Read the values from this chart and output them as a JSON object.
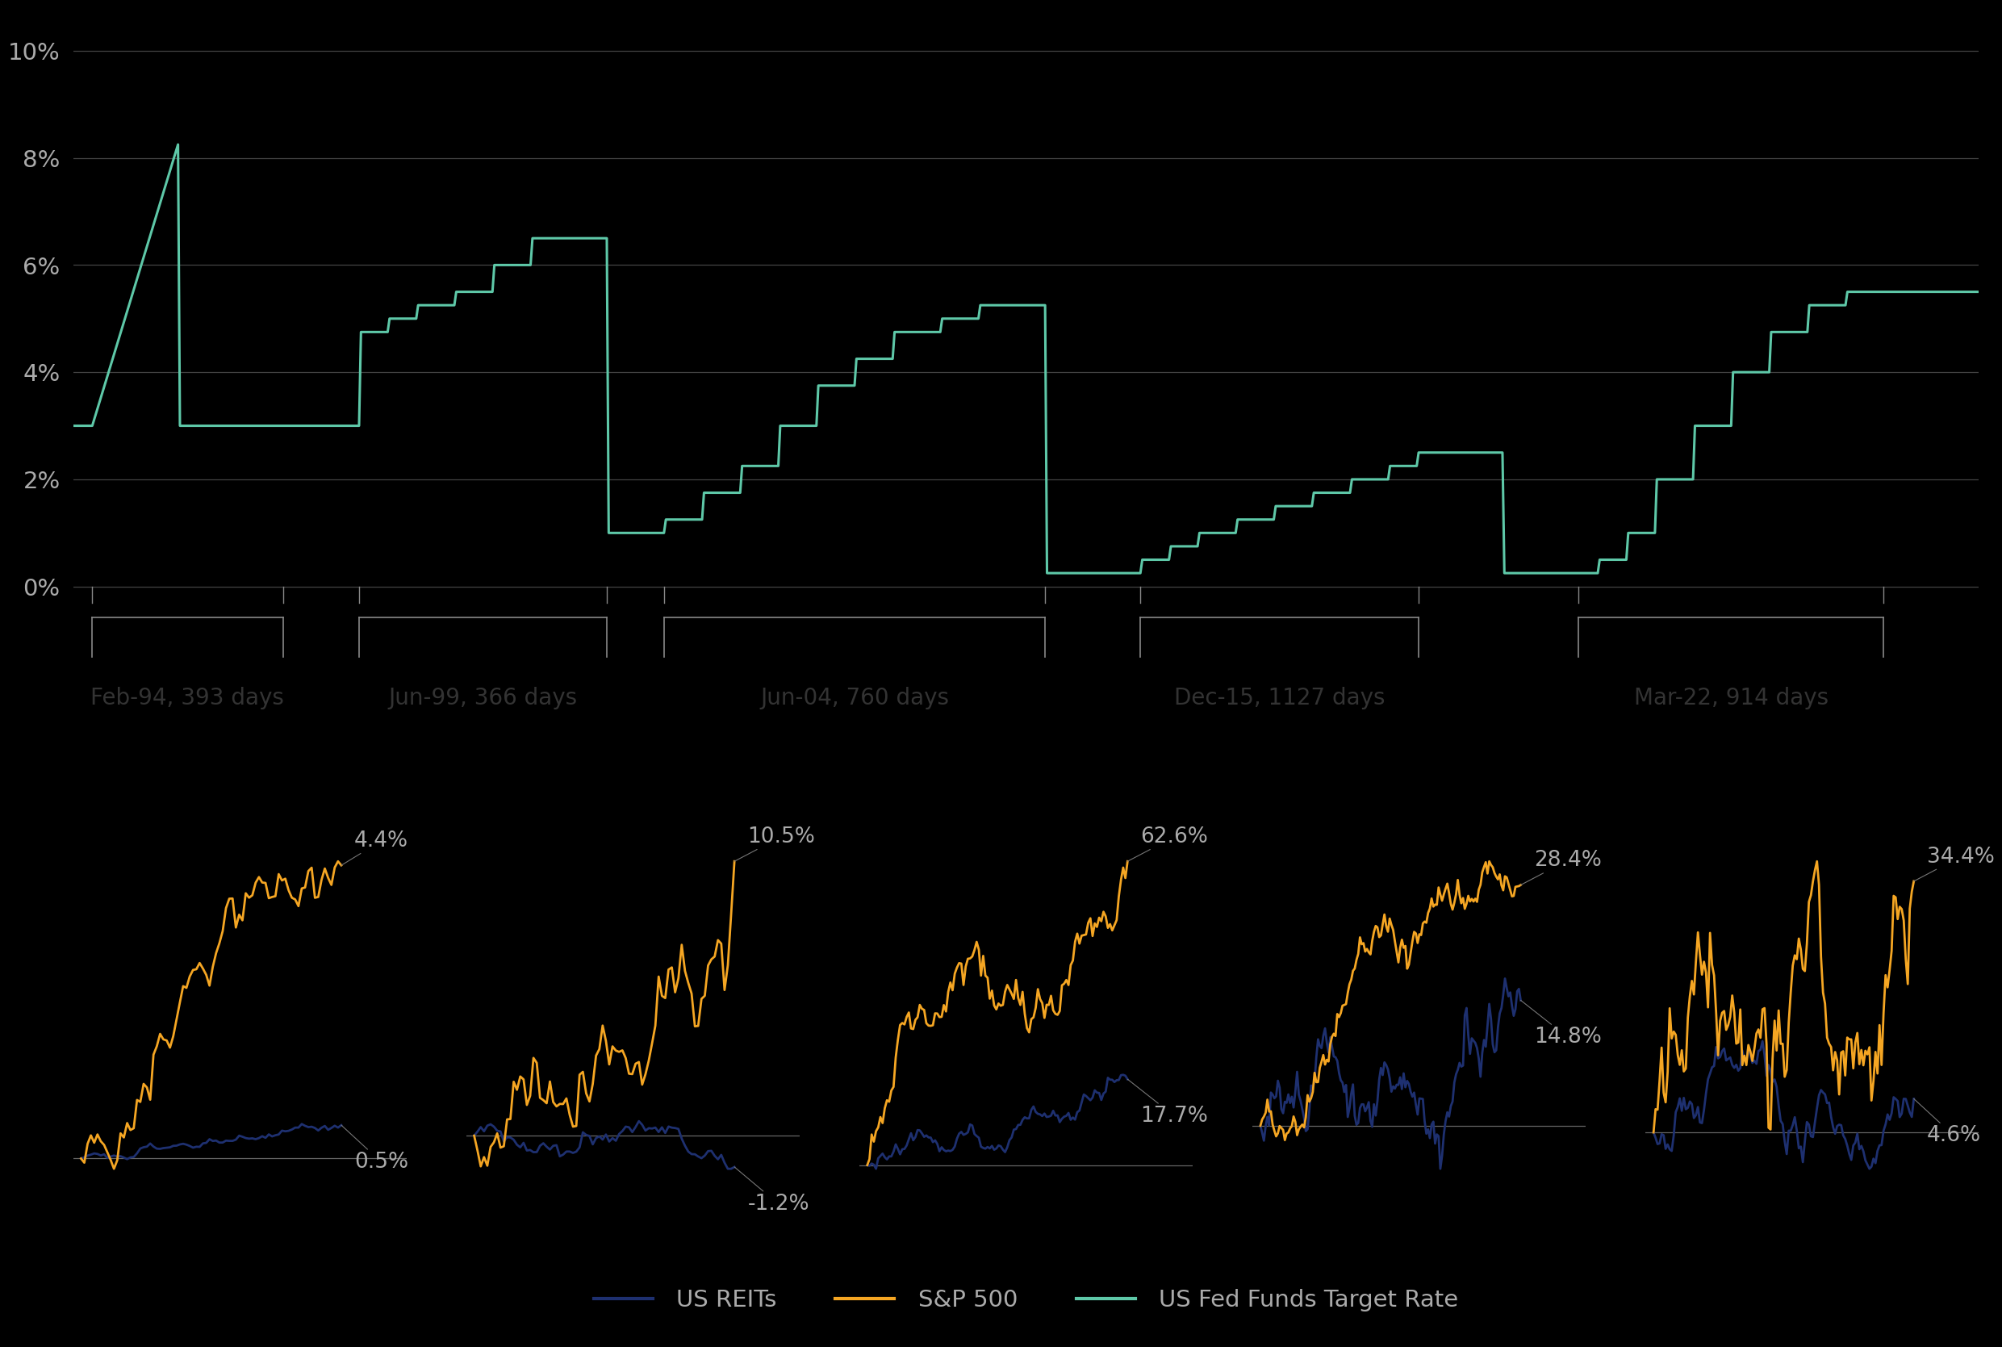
{
  "background_color": "#000000",
  "panel_bg": "#ffffff",
  "text_color": "#ffffff",
  "label_color": "#aaaaaa",
  "bracket_label_color": "#333333",
  "teal_color": "#5ec8a8",
  "navy_color": "#1e3070",
  "orange_color": "#f5a623",
  "gray_line_color": "#444444",
  "bracket_line_color": "#888888",
  "yticks": [
    0,
    2,
    4,
    6,
    8,
    10
  ],
  "ylim": [
    -0.3,
    10.8
  ],
  "xlim": [
    0,
    10
  ],
  "fed_x": [
    0.0,
    0.1,
    0.55,
    0.56,
    1.1,
    1.11,
    1.5,
    1.51,
    1.65,
    1.66,
    1.8,
    1.81,
    2.0,
    2.01,
    2.2,
    2.21,
    2.4,
    2.41,
    2.8,
    2.81,
    3.1,
    3.11,
    3.3,
    3.31,
    3.5,
    3.51,
    3.7,
    3.71,
    3.9,
    3.91,
    4.1,
    4.11,
    4.3,
    4.31,
    4.55,
    4.56,
    4.75,
    4.76,
    5.1,
    5.11,
    5.6,
    5.61,
    5.75,
    5.76,
    5.9,
    5.91,
    6.1,
    6.11,
    6.3,
    6.31,
    6.5,
    6.51,
    6.7,
    6.71,
    6.9,
    6.91,
    7.05,
    7.06,
    7.5,
    7.51,
    7.9,
    7.91,
    8.0,
    8.01,
    8.15,
    8.16,
    8.3,
    8.31,
    8.5,
    8.51,
    8.7,
    8.71,
    8.9,
    8.91,
    9.1,
    9.11,
    9.3,
    9.31,
    9.5,
    10.0
  ],
  "fed_y": [
    3.0,
    3.0,
    8.25,
    3.0,
    3.0,
    3.0,
    3.0,
    4.75,
    4.75,
    5.0,
    5.0,
    5.25,
    5.25,
    5.5,
    5.5,
    6.0,
    6.0,
    6.5,
    6.5,
    1.0,
    1.0,
    1.25,
    1.25,
    1.75,
    1.75,
    2.25,
    2.25,
    3.0,
    3.0,
    3.75,
    3.75,
    4.25,
    4.25,
    4.75,
    4.75,
    5.0,
    5.0,
    5.25,
    5.25,
    0.25,
    0.25,
    0.5,
    0.5,
    0.75,
    0.75,
    1.0,
    1.0,
    1.25,
    1.25,
    1.5,
    1.5,
    1.75,
    1.75,
    2.0,
    2.0,
    2.25,
    2.25,
    2.5,
    2.5,
    0.25,
    0.25,
    0.25,
    0.25,
    0.5,
    0.5,
    1.0,
    1.0,
    2.0,
    2.0,
    3.0,
    3.0,
    4.0,
    4.0,
    4.75,
    4.75,
    5.25,
    5.25,
    5.5,
    5.5,
    5.5
  ],
  "period_starts_x": [
    0.1,
    1.5,
    3.1,
    5.6,
    7.9
  ],
  "period_ends_x": [
    1.1,
    2.8,
    5.1,
    7.06,
    9.5
  ],
  "period_labels": [
    "Feb-94, 393 days",
    "Jun-99, 366 days",
    "Jun-04, 760 days",
    "Dec-15, 1127 days",
    "Mar-22, 914 days"
  ],
  "periods": [
    {
      "reits_final": 0.5,
      "sp500_final": 4.4,
      "reits_seed": 101,
      "sp500_seed": 201,
      "reits_vol": 0.25,
      "sp500_vol": 0.3,
      "n": 80
    },
    {
      "reits_final": -1.2,
      "sp500_final": 10.5,
      "reits_seed": 102,
      "sp500_seed": 202,
      "reits_vol": 0.6,
      "sp500_vol": 0.7,
      "n": 80
    },
    {
      "reits_final": 17.7,
      "sp500_final": 62.6,
      "reits_seed": 103,
      "sp500_seed": 203,
      "reits_vol": 1.2,
      "sp500_vol": 3.0,
      "n": 120
    },
    {
      "reits_final": 14.8,
      "sp500_final": 28.4,
      "reits_seed": 104,
      "sp500_seed": 204,
      "reits_vol": 1.5,
      "sp500_vol": 1.8,
      "n": 150
    },
    {
      "reits_final": 4.6,
      "sp500_final": 34.4,
      "reits_seed": 105,
      "sp500_seed": 205,
      "reits_vol": 2.0,
      "sp500_vol": 2.5,
      "n": 130
    }
  ],
  "legend_items": [
    "US REITs",
    "S&P 500",
    "US Fed Funds Target Rate"
  ],
  "legend_colors": [
    "#1e3070",
    "#f5a623",
    "#5ec8a8"
  ]
}
